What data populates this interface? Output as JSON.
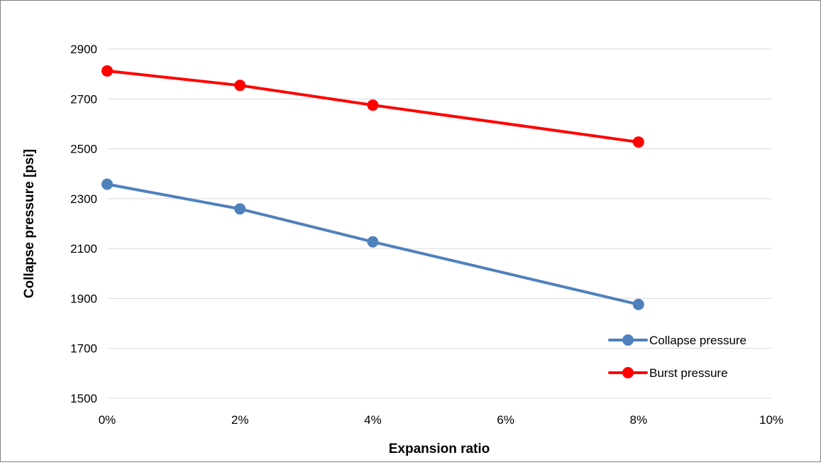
{
  "chart_data": {
    "type": "line",
    "title": "",
    "xlabel": "Expansion ratio",
    "ylabel": "Collapse pressure [psi]",
    "xlim": [
      0,
      10
    ],
    "ylim": [
      1500,
      2900
    ],
    "x_ticks": [
      0,
      2,
      4,
      6,
      8,
      10
    ],
    "x_tick_labels": [
      "0%",
      "2%",
      "4%",
      "6%",
      "8%",
      "10%"
    ],
    "y_ticks": [
      1500,
      1700,
      1900,
      2100,
      2300,
      2500,
      2700,
      2900
    ],
    "y_tick_labels": [
      "1500",
      "1700",
      "1900",
      "2100",
      "2300",
      "2500",
      "2700",
      "2900"
    ],
    "grid": "horizontal",
    "legend_position": "bottom-right",
    "series": [
      {
        "name": "Collapse pressure",
        "color": "#4f81bd",
        "x": [
          0,
          2,
          4,
          8
        ],
        "values": [
          2358,
          2259,
          2127,
          1876
        ]
      },
      {
        "name": "Burst pressure",
        "color": "#ff0000",
        "x": [
          0,
          2,
          4,
          8
        ],
        "values": [
          2812,
          2754,
          2675,
          2527
        ]
      }
    ]
  }
}
